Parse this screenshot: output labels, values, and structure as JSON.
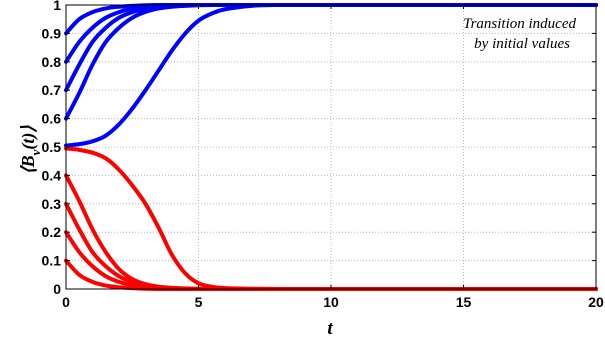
{
  "chart_data": {
    "type": "line",
    "title": "",
    "xlabel": "t",
    "ylabel": "⟨B_v(t)⟩",
    "ylabel_main": "⟨B",
    "ylabel_sub": "v",
    "ylabel_tail": "(t)⟩",
    "xlim": [
      0,
      20
    ],
    "ylim": [
      0,
      1
    ],
    "x_ticks": [
      0,
      5,
      10,
      15,
      20
    ],
    "y_ticks": [
      0,
      0.1,
      0.2,
      0.3,
      0.4,
      0.5,
      0.6,
      0.7,
      0.8,
      0.9,
      1
    ],
    "x_tick_labels": [
      "0",
      "5",
      "10",
      "15",
      "20"
    ],
    "y_tick_labels": [
      "0",
      "0.1",
      "0.2",
      "0.3",
      "0.4",
      "0.5",
      "0.6",
      "0.7",
      "0.8",
      "0.9",
      "1"
    ],
    "grid": true,
    "annotation": [
      "Transition induced",
      "by initial values"
    ],
    "colors": {
      "upper": "#0000ff",
      "lower": "#ff0000"
    },
    "x": [
      0,
      0.5,
      1,
      1.5,
      2,
      2.5,
      3,
      3.5,
      4,
      4.5,
      5,
      5.5,
      6,
      7,
      8,
      10,
      12,
      15,
      20
    ],
    "series": [
      {
        "color": "#0000ff",
        "values": [
          0.9,
          0.95,
          0.975,
          0.988,
          0.994,
          0.997,
          0.999,
          1,
          1,
          1,
          1,
          1,
          1,
          1,
          1,
          1,
          1,
          1,
          1
        ]
      },
      {
        "color": "#0000ff",
        "values": [
          0.8,
          0.87,
          0.92,
          0.955,
          0.975,
          0.987,
          0.994,
          0.997,
          0.999,
          1,
          1,
          1,
          1,
          1,
          1,
          1,
          1,
          1,
          1
        ]
      },
      {
        "color": "#0000ff",
        "values": [
          0.7,
          0.79,
          0.87,
          0.92,
          0.955,
          0.975,
          0.987,
          0.994,
          0.997,
          0.999,
          1,
          1,
          1,
          1,
          1,
          1,
          1,
          1,
          1
        ]
      },
      {
        "color": "#0000ff",
        "values": [
          0.6,
          0.69,
          0.79,
          0.87,
          0.92,
          0.955,
          0.976,
          0.988,
          0.994,
          0.997,
          0.999,
          1,
          1,
          1,
          1,
          1,
          1,
          1,
          1
        ]
      },
      {
        "color": "#0000ff",
        "values": [
          0.505,
          0.51,
          0.52,
          0.54,
          0.58,
          0.635,
          0.7,
          0.77,
          0.84,
          0.9,
          0.945,
          0.97,
          0.985,
          0.997,
          1,
          1,
          1,
          1,
          1
        ]
      },
      {
        "color": "#ff0000",
        "values": [
          0.495,
          0.49,
          0.48,
          0.46,
          0.42,
          0.365,
          0.3,
          0.215,
          0.12,
          0.055,
          0.02,
          0.008,
          0.003,
          0.001,
          0,
          0,
          0,
          0,
          0
        ]
      },
      {
        "color": "#ff0000",
        "values": [
          0.4,
          0.31,
          0.21,
          0.13,
          0.07,
          0.035,
          0.017,
          0.008,
          0.004,
          0.002,
          0.001,
          0,
          0,
          0,
          0,
          0,
          0,
          0,
          0
        ]
      },
      {
        "color": "#ff0000",
        "values": [
          0.3,
          0.21,
          0.13,
          0.08,
          0.045,
          0.025,
          0.013,
          0.006,
          0.003,
          0.001,
          0,
          0,
          0,
          0,
          0,
          0,
          0,
          0,
          0
        ]
      },
      {
        "color": "#ff0000",
        "values": [
          0.2,
          0.13,
          0.08,
          0.045,
          0.025,
          0.013,
          0.006,
          0.003,
          0.001,
          0,
          0,
          0,
          0,
          0,
          0,
          0,
          0,
          0,
          0
        ]
      },
      {
        "color": "#ff0000",
        "values": [
          0.1,
          0.05,
          0.025,
          0.012,
          0.006,
          0.003,
          0.001,
          0,
          0,
          0,
          0,
          0,
          0,
          0,
          0,
          0,
          0,
          0,
          0
        ]
      }
    ]
  }
}
